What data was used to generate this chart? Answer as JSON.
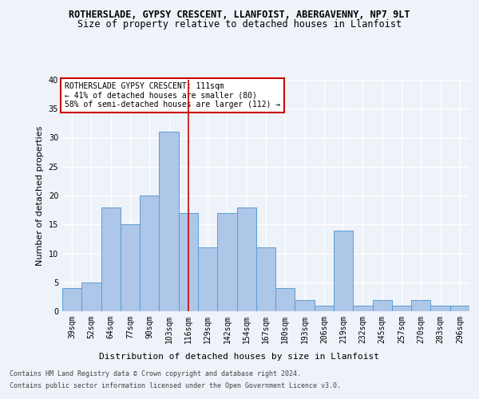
{
  "title1": "ROTHERSLADE, GYPSY CRESCENT, LLANFOIST, ABERGAVENNY, NP7 9LT",
  "title2": "Size of property relative to detached houses in Llanfoist",
  "xlabel": "Distribution of detached houses by size in Llanfoist",
  "ylabel": "Number of detached properties",
  "categories": [
    "39sqm",
    "52sqm",
    "64sqm",
    "77sqm",
    "90sqm",
    "103sqm",
    "116sqm",
    "129sqm",
    "142sqm",
    "154sqm",
    "167sqm",
    "180sqm",
    "193sqm",
    "206sqm",
    "219sqm",
    "232sqm",
    "245sqm",
    "257sqm",
    "270sqm",
    "283sqm",
    "296sqm"
  ],
  "values": [
    4,
    5,
    18,
    15,
    20,
    31,
    17,
    11,
    17,
    18,
    11,
    4,
    2,
    1,
    14,
    1,
    2,
    1,
    2,
    1,
    1
  ],
  "bar_color": "#aec6e8",
  "bar_edge_color": "#5a9fd4",
  "vline_x": 6,
  "vline_color": "#cc0000",
  "annotation_title": "ROTHERSLADE GYPSY CRESCENT: 111sqm",
  "annotation_line1": "← 41% of detached houses are smaller (80)",
  "annotation_line2": "58% of semi-detached houses are larger (112) →",
  "annotation_box_color": "#ffffff",
  "annotation_box_edge": "#cc0000",
  "footer1": "Contains HM Land Registry data © Crown copyright and database right 2024.",
  "footer2": "Contains public sector information licensed under the Open Government Licence v3.0.",
  "ylim": [
    0,
    40
  ],
  "yticks": [
    0,
    5,
    10,
    15,
    20,
    25,
    30,
    35,
    40
  ],
  "background_color": "#eef2f9",
  "grid_color": "#ffffff",
  "title_fontsize": 8.5,
  "subtitle_fontsize": 8.5,
  "axis_label_fontsize": 8,
  "tick_fontsize": 7,
  "footer_fontsize": 6,
  "annot_fontsize": 7
}
